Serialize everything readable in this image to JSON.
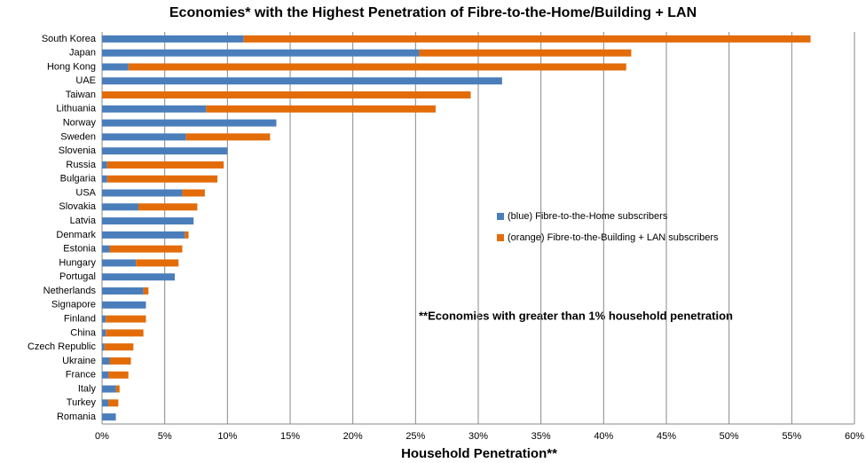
{
  "chart_data": {
    "type": "stacked_bar_horizontal",
    "title": "Economies* with the Highest Penetration of Fibre-to-the-Home/Building + LAN",
    "x_axis_label": "Household Penetration**",
    "annotation": "**Economies with greater than 1% household penetration",
    "categories": [
      "South Korea",
      "Japan",
      "Hong Kong",
      "UAE",
      "Taiwan",
      "Lithuania",
      "Norway",
      "Sweden",
      "Slovenia",
      "Russia",
      "Bulgaria",
      "USA",
      "Slovakia",
      "Latvia",
      "Denmark",
      "Estonia",
      "Hungary",
      "Portugal",
      "Netherlands",
      "Signapore",
      "Finland",
      "China",
      "Czech Republic",
      "Ukraine",
      "France",
      "Italy",
      "Turkey",
      "Romania"
    ],
    "series": [
      {
        "name": "(blue) Fibre-to-the-Home subscribers",
        "color": "#4a7ebb",
        "values": [
          11.3,
          25.3,
          2.1,
          31.9,
          0,
          8.3,
          13.9,
          6.7,
          10.0,
          0.4,
          0.4,
          6.4,
          2.9,
          7.3,
          6.6,
          0.6,
          2.7,
          5.8,
          3.3,
          3.5,
          0.3,
          0.3,
          0.2,
          0.6,
          0.5,
          1.1,
          0.5,
          1.1
        ]
      },
      {
        "name": "(orange) Fibre-to-the-Building + LAN subscribers",
        "color": "#e36c09",
        "values": [
          45.2,
          16.9,
          39.7,
          0,
          29.4,
          18.3,
          0,
          6.7,
          0,
          9.3,
          8.8,
          1.8,
          4.7,
          0,
          0.3,
          5.8,
          3.4,
          0,
          0.4,
          0,
          3.2,
          3.0,
          2.3,
          1.7,
          1.6,
          0.3,
          0.8,
          0
        ]
      }
    ],
    "xlim": [
      0,
      60
    ],
    "xticks": [
      {
        "value": 0,
        "label": "0%"
      },
      {
        "value": 5,
        "label": "5%"
      },
      {
        "value": 10,
        "label": "10%"
      },
      {
        "value": 15,
        "label": "15%"
      },
      {
        "value": 20,
        "label": "20%"
      },
      {
        "value": 25,
        "label": "25%"
      },
      {
        "value": 30,
        "label": "30%"
      },
      {
        "value": 35,
        "label": "35%"
      },
      {
        "value": 40,
        "label": "40%"
      },
      {
        "value": 45,
        "label": "45%"
      },
      {
        "value": 50,
        "label": "50%"
      },
      {
        "value": 55,
        "label": "55%"
      },
      {
        "value": 60,
        "label": "60%"
      }
    ],
    "grid": true
  }
}
